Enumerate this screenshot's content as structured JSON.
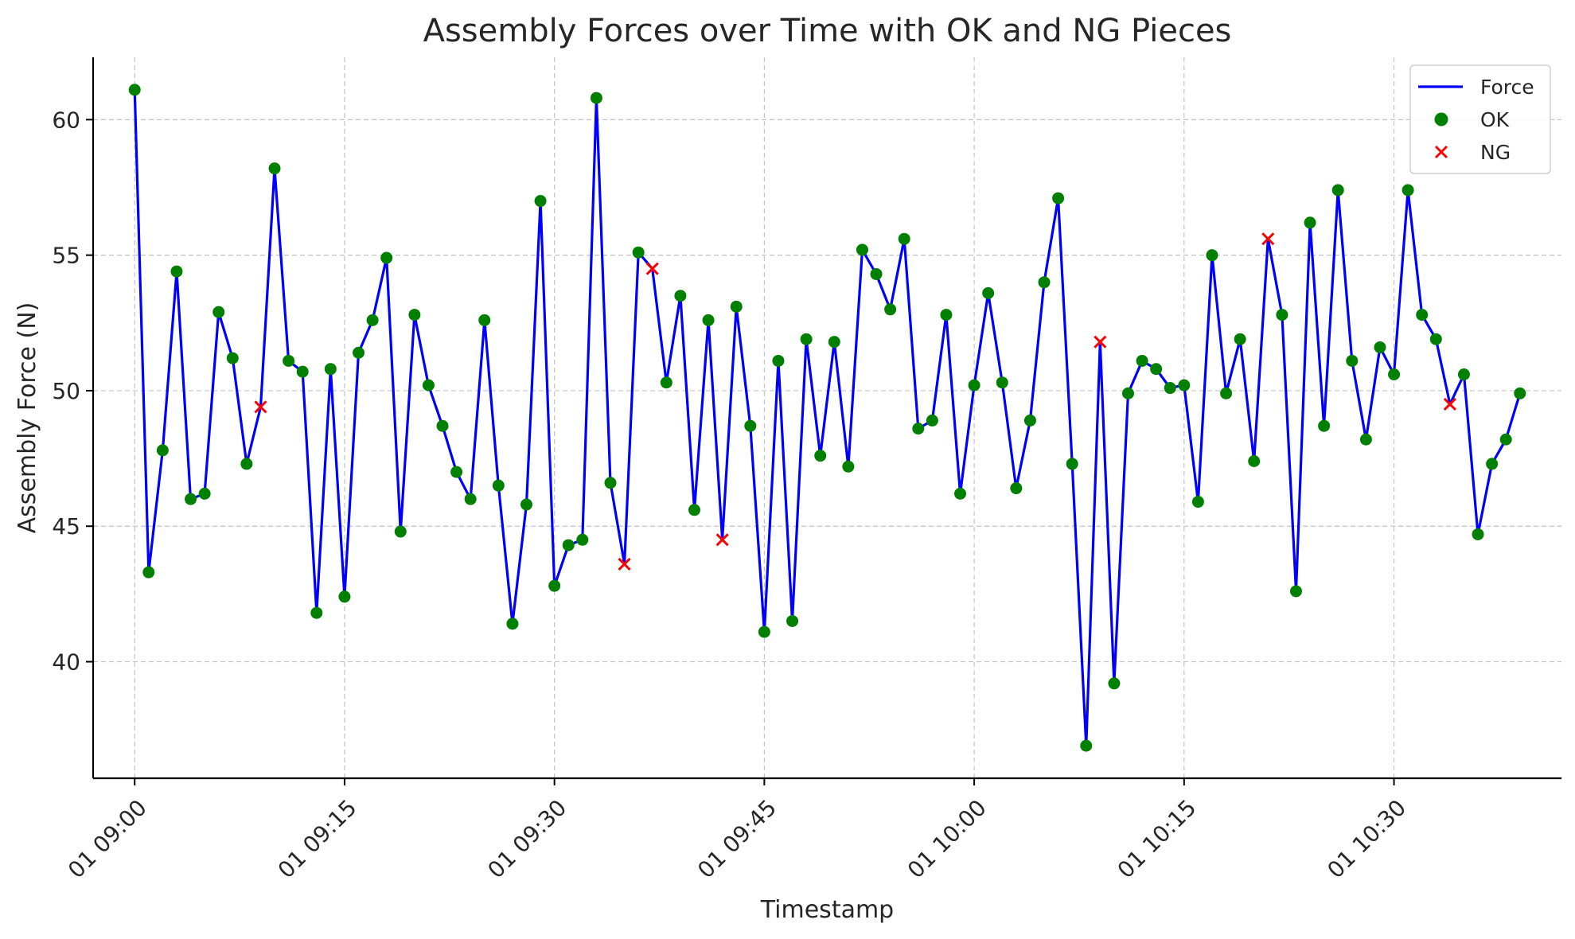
{
  "chart_data": {
    "type": "line",
    "title": "Assembly Forces over Time with OK and NG Pieces",
    "xlabel": "Timestamp",
    "ylabel": "Assembly Force (N)",
    "x_ticks": [
      "01 09:00",
      "01 09:15",
      "01 09:30",
      "01 09:45",
      "01 10:00",
      "01 10:15",
      "01 10:30"
    ],
    "y_ticks": [
      "40",
      "45",
      "50",
      "55",
      "60"
    ],
    "ylim": [
      35.7,
      62.3
    ],
    "xlim": [
      "09:00",
      "10:39"
    ],
    "grid": true,
    "legend_position": "top-right",
    "x": [
      "09:00",
      "09:01",
      "09:02",
      "09:03",
      "09:04",
      "09:05",
      "09:06",
      "09:07",
      "09:08",
      "09:09",
      "09:10",
      "09:11",
      "09:12",
      "09:13",
      "09:14",
      "09:15",
      "09:16",
      "09:17",
      "09:18",
      "09:19",
      "09:20",
      "09:21",
      "09:22",
      "09:23",
      "09:24",
      "09:25",
      "09:26",
      "09:27",
      "09:28",
      "09:29",
      "09:30",
      "09:31",
      "09:32",
      "09:33",
      "09:34",
      "09:35",
      "09:36",
      "09:37",
      "09:38",
      "09:39",
      "09:40",
      "09:41",
      "09:42",
      "09:43",
      "09:44",
      "09:45",
      "09:46",
      "09:47",
      "09:48",
      "09:49",
      "09:50",
      "09:51",
      "09:52",
      "09:53",
      "09:54",
      "09:55",
      "09:56",
      "09:57",
      "09:58",
      "09:59",
      "10:00",
      "10:01",
      "10:02",
      "10:03",
      "10:04",
      "10:05",
      "10:06",
      "10:07",
      "10:08",
      "10:09",
      "10:10",
      "10:11",
      "10:12",
      "10:13",
      "10:14",
      "10:15",
      "10:16",
      "10:17",
      "10:18",
      "10:19",
      "10:20",
      "10:21",
      "10:22",
      "10:23",
      "10:24",
      "10:25",
      "10:26",
      "10:27",
      "10:28",
      "10:29",
      "10:30",
      "10:31",
      "10:32",
      "10:33",
      "10:34",
      "10:35",
      "10:36",
      "10:37",
      "10:38",
      "10:39"
    ],
    "series": [
      {
        "name": "Force",
        "color": "#0000ff",
        "values": [
          61.1,
          43.3,
          47.8,
          54.4,
          46.0,
          46.2,
          52.9,
          51.2,
          47.3,
          49.4,
          58.2,
          51.1,
          50.7,
          41.8,
          50.8,
          42.4,
          51.4,
          52.6,
          54.9,
          44.8,
          52.8,
          50.2,
          48.7,
          47.0,
          46.0,
          52.6,
          46.5,
          41.4,
          45.8,
          57.0,
          42.8,
          44.3,
          44.5,
          60.8,
          46.6,
          43.6,
          55.1,
          54.5,
          50.3,
          53.5,
          45.6,
          52.6,
          44.5,
          53.1,
          48.7,
          41.1,
          51.1,
          41.5,
          51.9,
          47.6,
          51.8,
          47.2,
          55.2,
          54.3,
          53.0,
          55.6,
          48.6,
          48.9,
          52.8,
          46.2,
          50.2,
          53.6,
          50.3,
          46.4,
          48.9,
          54.0,
          57.1,
          47.3,
          36.9,
          51.8,
          39.2,
          49.9,
          51.1,
          50.8,
          50.1,
          50.2,
          45.9,
          55.0,
          49.9,
          51.9,
          47.4,
          55.6,
          52.8,
          42.6,
          56.2,
          48.7,
          57.4,
          51.1,
          48.2,
          51.6,
          50.6,
          57.4,
          52.8,
          51.9,
          49.5,
          50.6,
          44.7,
          47.3,
          48.2,
          49.9
        ]
      }
    ],
    "ng_indices": [
      9,
      35,
      37,
      42,
      69,
      81,
      94
    ],
    "legend": [
      {
        "label": "Force",
        "color": "#0000ff",
        "marker": "line"
      },
      {
        "label": "OK",
        "color": "#008000",
        "marker": "circle"
      },
      {
        "label": "NG",
        "color": "#ff0000",
        "marker": "x"
      }
    ]
  }
}
